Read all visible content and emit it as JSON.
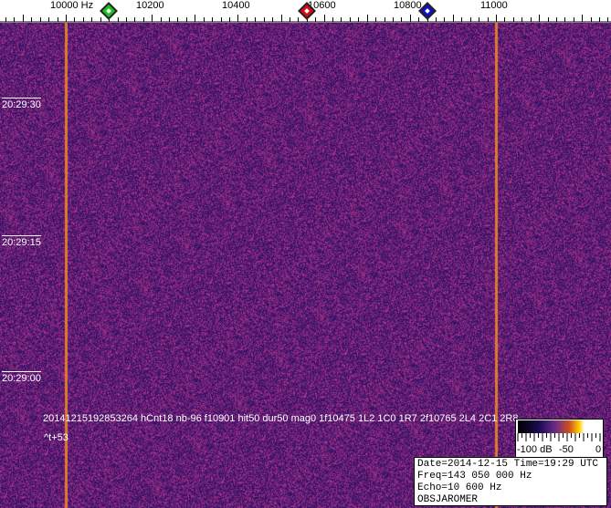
{
  "frequency_axis": {
    "unit": "Hz",
    "labels": [
      "10000",
      "10200",
      "10400",
      "10600",
      "10800",
      "11000"
    ],
    "label_values": [
      10000,
      10200,
      10400,
      10600,
      10800,
      11000
    ]
  },
  "markers": [
    {
      "name": "green",
      "freq": 10100,
      "color": "#20c020"
    },
    {
      "name": "red",
      "freq": 10560,
      "color": "#d01010"
    },
    {
      "name": "blue",
      "freq": 10840,
      "color": "#1010c0"
    }
  ],
  "carrier_lines_hz": [
    10000,
    11000
  ],
  "time_labels": [
    "20:29:30",
    "20:29:15",
    "20:29:00"
  ],
  "detection_line": "20141215192853264 hCnt18 nb-96 f10901 hit50 dur50 mag0 1f10475 1L2 1C0 1R7 2f10765 2L4 2C1 2R8",
  "time_offset": "^t+53",
  "colorbar": {
    "left": "-100 dB",
    "mid": "-50",
    "right": "0"
  },
  "observation": {
    "line1": "Date=2014-12-15 Time=19:29 UTC",
    "line2": "Freq=143 050 000 Hz",
    "line3": "Echo=10 600 Hz",
    "line4": "OBSJAROMER"
  }
}
